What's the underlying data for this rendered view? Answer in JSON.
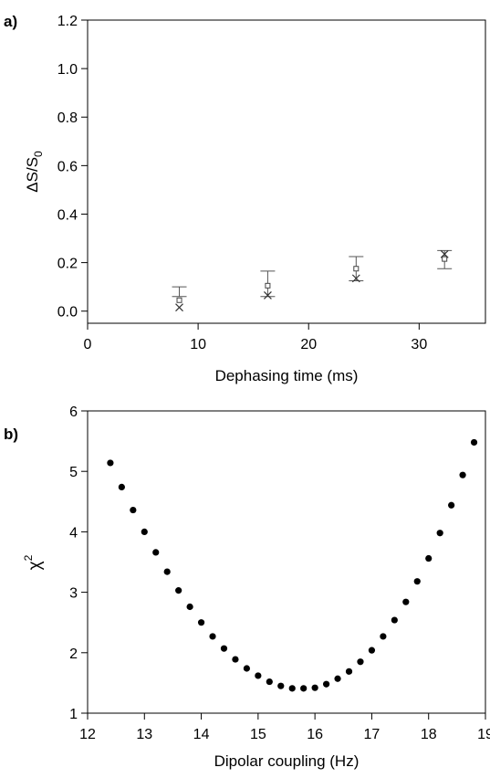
{
  "panels": [
    {
      "label": "a)"
    },
    {
      "label": "b)"
    }
  ],
  "chart_data": [
    {
      "type": "scatter",
      "panel_label": "a)",
      "xlabel": "Dephasing time (ms)",
      "ylabel_main": "ΔS/S",
      "ylabel_sub": "0",
      "xlim": [
        0,
        36
      ],
      "ylim": [
        -0.05,
        1.2
      ],
      "xticks": [
        0,
        10,
        20,
        30
      ],
      "yticks": [
        0.0,
        0.2,
        0.4,
        0.6,
        0.8,
        1.0,
        1.2
      ],
      "ytick_labels": [
        "0.0",
        "0.2",
        "0.4",
        "0.6",
        "0.8",
        "1.0",
        "1.2"
      ],
      "grid": false,
      "series": [
        {
          "marker": "square",
          "points": [
            {
              "x": 8.3,
              "y": 0.045,
              "err_low": 0.06,
              "err_high": 0.1
            },
            {
              "x": 16.3,
              "y": 0.105,
              "err_low": 0.06,
              "err_high": 0.165
            },
            {
              "x": 24.3,
              "y": 0.175,
              "err_low": 0.125,
              "err_high": 0.225
            },
            {
              "x": 32.3,
              "y": 0.215,
              "err_low": 0.175,
              "err_high": 0.25
            }
          ]
        },
        {
          "marker": "cross",
          "points": [
            {
              "x": 8.3,
              "y": 0.015
            },
            {
              "x": 16.3,
              "y": 0.065
            },
            {
              "x": 24.3,
              "y": 0.135
            },
            {
              "x": 32.3,
              "y": 0.235
            }
          ]
        }
      ]
    },
    {
      "type": "scatter",
      "panel_label": "b)",
      "xlabel": "Dipolar coupling (Hz)",
      "ylabel_main": "χ",
      "ylabel_sup": "2",
      "xlim": [
        12,
        19
      ],
      "ylim": [
        1,
        6
      ],
      "xticks": [
        12,
        13,
        14,
        15,
        16,
        17,
        18,
        19
      ],
      "yticks": [
        1,
        2,
        3,
        4,
        5,
        6
      ],
      "grid": false,
      "x": [
        12.4,
        12.6,
        12.8,
        13.0,
        13.2,
        13.4,
        13.6,
        13.8,
        14.0,
        14.2,
        14.4,
        14.6,
        14.8,
        15.0,
        15.2,
        15.4,
        15.6,
        15.8,
        16.0,
        16.2,
        16.4,
        16.6,
        16.8,
        17.0,
        17.2,
        17.4,
        17.6,
        17.8,
        18.0,
        18.2,
        18.4,
        18.6,
        18.8
      ],
      "y": [
        5.14,
        4.74,
        4.36,
        4.0,
        3.66,
        3.34,
        3.03,
        2.76,
        2.5,
        2.27,
        2.07,
        1.89,
        1.74,
        1.62,
        1.52,
        1.45,
        1.41,
        1.41,
        1.42,
        1.48,
        1.57,
        1.69,
        1.85,
        2.04,
        2.27,
        2.54,
        2.84,
        3.18,
        3.56,
        3.98,
        4.44,
        4.94,
        5.48
      ]
    }
  ]
}
